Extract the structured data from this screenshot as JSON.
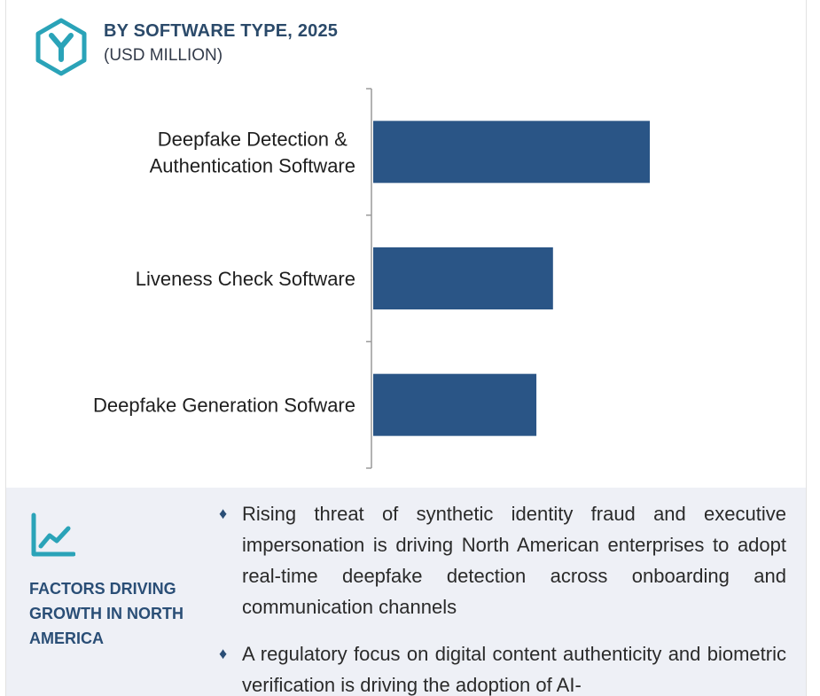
{
  "header": {
    "title": "BY SOFTWARE TYPE, 2025",
    "subtitle": "(USD MILLION)",
    "logo_icon": "y-hexagon-logo-icon"
  },
  "chart_data": {
    "type": "bar",
    "orientation": "horizontal",
    "title": "BY SOFTWARE TYPE, 2025",
    "subtitle": "(USD MILLION)",
    "categories": [
      [
        "Deepfake Detection &",
        "Authentication Software"
      ],
      [
        "Liveness Check Software"
      ],
      [
        "Deepfake Generation Sofware"
      ]
    ],
    "values": [
      100,
      65,
      59
    ],
    "value_note": "relative bar lengths; axis has no tick labels",
    "xlim": [
      0,
      100
    ],
    "bar_color": "#2a5586",
    "axis_color": "#9a9a9a",
    "grid": false,
    "legend": "none"
  },
  "factors": {
    "icon": "growth-line-chart-icon",
    "title": "FACTORS DRIVING GROWTH IN NORTH AMERICA",
    "bullet": "♦",
    "items": [
      "Rising threat of synthetic identity fraud and executive impersonation is driving North American enterprises to adopt real-time deepfake detection across onboarding and communication channels",
      "A regulatory focus on digital content authenticity and biometric verification is driving the adoption of AI-"
    ],
    "accent_color": "#2a4e76",
    "panel_color": "#eef0f6"
  }
}
